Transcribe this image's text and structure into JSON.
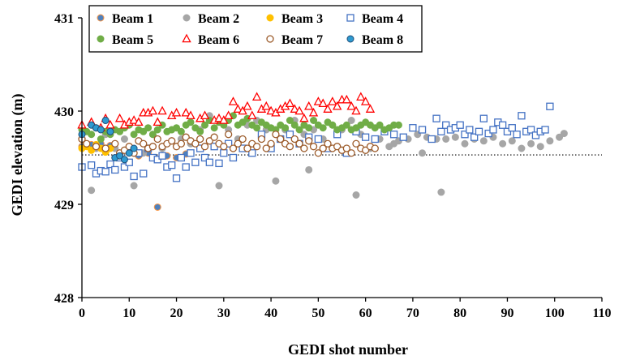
{
  "chart_data": {
    "type": "scatter",
    "title": "",
    "xlabel": "GEDI shot number",
    "ylabel": "GEDI elevation (m)",
    "xlim": [
      0,
      110
    ],
    "ylim": [
      428,
      431
    ],
    "xticks": [
      0,
      10,
      20,
      30,
      40,
      50,
      60,
      70,
      80,
      90,
      100,
      110
    ],
    "yticks": [
      428,
      429,
      430,
      431
    ],
    "xtick_labels": [
      "0",
      "10",
      "20",
      "30",
      "40",
      "50",
      "60",
      "70",
      "80",
      "90",
      "100",
      "110"
    ],
    "ytick_labels": [
      "428",
      "429",
      "430",
      "431"
    ],
    "grid": false,
    "legend": {
      "placement": "top-left"
    },
    "reference_line": {
      "y": 429.53,
      "style": "dotted"
    },
    "series": [
      {
        "name": "Beam 1",
        "marker": "circle",
        "fill": "#4F81BD",
        "stroke": "#F79646",
        "x": [
          0,
          2,
          4,
          6,
          8,
          12,
          14,
          16,
          18,
          20,
          22
        ],
        "y": [
          429.62,
          429.64,
          429.65,
          429.63,
          429.55,
          429.52,
          429.55,
          428.97,
          429.52,
          429.5,
          429.54
        ]
      },
      {
        "name": "Beam 2",
        "marker": "circle",
        "fill": "#A6A6A6",
        "stroke": "#A6A6A6",
        "x": [
          0,
          2,
          3,
          5,
          7,
          9,
          11,
          13,
          15,
          17,
          19,
          21,
          23,
          25,
          27,
          29,
          31,
          33,
          35,
          37,
          39,
          41,
          43,
          45,
          47,
          48,
          49,
          51,
          53,
          55,
          57,
          58,
          59,
          61,
          63,
          65,
          66,
          67,
          69,
          71,
          72,
          73,
          75,
          76,
          77,
          79,
          81,
          83,
          85,
          87,
          89,
          91,
          93,
          95,
          97,
          99,
          101,
          102
        ],
        "y": [
          429.7,
          429.15,
          429.6,
          429.75,
          429.6,
          429.7,
          429.2,
          429.55,
          429.75,
          429.6,
          429.8,
          429.7,
          429.65,
          429.8,
          429.95,
          429.2,
          429.8,
          429.7,
          429.85,
          429.9,
          429.8,
          429.25,
          429.8,
          429.9,
          429.75,
          429.37,
          429.8,
          429.7,
          429.85,
          429.8,
          429.9,
          429.1,
          429.75,
          429.6,
          429.7,
          429.62,
          429.65,
          429.68,
          429.7,
          429.75,
          429.55,
          429.72,
          429.7,
          429.13,
          429.7,
          429.72,
          429.65,
          429.7,
          429.68,
          429.72,
          429.65,
          429.68,
          429.6,
          429.65,
          429.62,
          429.68,
          429.72,
          429.76
        ]
      },
      {
        "name": "Beam 3",
        "marker": "circle",
        "fill": "#FFC000",
        "stroke": "#FFC000",
        "x": [
          0,
          1,
          2,
          3,
          4,
          5,
          6
        ],
        "y": [
          429.6,
          429.62,
          429.58,
          429.64,
          429.6,
          429.56,
          429.6
        ]
      },
      {
        "name": "Beam 4",
        "marker": "square-open",
        "fill": "none",
        "stroke": "#4472C4",
        "x": [
          0,
          2,
          3,
          4,
          5,
          6,
          7,
          8,
          9,
          10,
          11,
          12,
          13,
          14,
          15,
          16,
          17,
          18,
          19,
          20,
          21,
          22,
          23,
          24,
          25,
          26,
          27,
          28,
          29,
          30,
          31,
          32,
          34,
          36,
          38,
          40,
          42,
          44,
          46,
          48,
          50,
          52,
          54,
          56,
          58,
          60,
          62,
          64,
          66,
          68,
          70,
          72,
          74,
          75,
          76,
          77,
          78,
          79,
          80,
          81,
          82,
          83,
          84,
          85,
          86,
          87,
          88,
          89,
          90,
          91,
          92,
          93,
          94,
          95,
          96,
          97,
          98,
          99
        ],
        "y": [
          429.4,
          429.42,
          429.33,
          429.36,
          429.35,
          429.43,
          429.37,
          429.5,
          429.4,
          429.45,
          429.3,
          429.55,
          429.33,
          429.6,
          429.5,
          429.48,
          429.52,
          429.4,
          429.42,
          429.28,
          429.5,
          429.4,
          429.55,
          429.45,
          429.6,
          429.5,
          429.45,
          429.62,
          429.44,
          429.55,
          429.65,
          429.5,
          429.6,
          429.55,
          429.75,
          429.6,
          429.7,
          429.75,
          429.65,
          429.72,
          429.7,
          429.6,
          429.75,
          429.55,
          429.78,
          429.72,
          429.7,
          429.78,
          429.75,
          429.72,
          429.82,
          429.8,
          429.7,
          429.92,
          429.78,
          429.85,
          429.8,
          429.82,
          429.85,
          429.75,
          429.8,
          429.72,
          429.78,
          429.92,
          429.76,
          429.8,
          429.88,
          429.85,
          429.78,
          429.82,
          429.75,
          429.95,
          429.78,
          429.8,
          429.74,
          429.78,
          429.8,
          430.05
        ]
      },
      {
        "name": "Beam 5",
        "marker": "circle",
        "fill": "#70AD47",
        "stroke": "#70AD47",
        "x": [
          0,
          1,
          2,
          3,
          4,
          5,
          6,
          7,
          8,
          9,
          10,
          11,
          12,
          13,
          14,
          15,
          16,
          17,
          18,
          19,
          20,
          21,
          22,
          23,
          24,
          25,
          26,
          27,
          28,
          29,
          30,
          31,
          32,
          33,
          34,
          35,
          36,
          37,
          38,
          39,
          40,
          41,
          42,
          43,
          44,
          45,
          46,
          47,
          48,
          49,
          50,
          51,
          52,
          53,
          54,
          55,
          56,
          57,
          58,
          59,
          60,
          61,
          62,
          63,
          64,
          65,
          66,
          67
        ],
        "y": [
          429.8,
          429.78,
          429.75,
          429.82,
          429.7,
          429.78,
          429.75,
          429.8,
          429.78,
          429.82,
          429.85,
          429.75,
          429.8,
          429.78,
          429.82,
          429.75,
          429.8,
          429.85,
          429.78,
          429.8,
          429.82,
          429.78,
          429.85,
          429.88,
          429.82,
          429.78,
          429.85,
          429.9,
          429.82,
          429.88,
          429.85,
          429.9,
          429.95,
          429.85,
          429.88,
          429.92,
          429.85,
          429.82,
          429.88,
          429.85,
          429.82,
          429.8,
          429.85,
          429.82,
          429.9,
          429.85,
          429.8,
          429.85,
          429.82,
          429.9,
          429.85,
          429.82,
          429.88,
          429.85,
          429.8,
          429.82,
          429.85,
          429.8,
          429.82,
          429.85,
          429.88,
          429.85,
          429.82,
          429.85,
          429.8,
          429.82,
          429.85,
          429.85
        ]
      },
      {
        "name": "Beam 6",
        "marker": "triangle-open",
        "fill": "none",
        "stroke": "#FF0000",
        "x": [
          0,
          2,
          4,
          5,
          6,
          8,
          9,
          10,
          11,
          12,
          13,
          14,
          15,
          16,
          17,
          19,
          20,
          22,
          23,
          25,
          26,
          28,
          29,
          30,
          31,
          32,
          33,
          34,
          35,
          36,
          37,
          38,
          39,
          40,
          41,
          42,
          43,
          44,
          45,
          46,
          47,
          48,
          49,
          50,
          51,
          52,
          53,
          54,
          55,
          56,
          57,
          58,
          59,
          60,
          61
        ],
        "y": [
          429.85,
          429.88,
          429.82,
          429.92,
          429.85,
          429.92,
          429.85,
          429.88,
          429.9,
          429.88,
          429.98,
          429.98,
          430.0,
          429.88,
          430.0,
          429.95,
          429.98,
          429.98,
          429.95,
          429.92,
          429.95,
          429.9,
          429.92,
          429.9,
          429.95,
          430.1,
          430.02,
          430.0,
          430.05,
          429.95,
          430.15,
          430.02,
          430.05,
          430.0,
          429.98,
          430.02,
          430.05,
          430.08,
          430.02,
          430.0,
          429.92,
          430.05,
          429.98,
          430.1,
          430.08,
          430.02,
          430.1,
          430.05,
          430.12,
          430.12,
          430.05,
          430.0,
          430.15,
          430.1,
          430.02
        ]
      },
      {
        "name": "Beam 7",
        "marker": "circle-open",
        "fill": "none",
        "stroke": "#9C5B2A",
        "x": [
          0,
          1,
          3,
          5,
          7,
          8,
          9,
          10,
          11,
          12,
          13,
          14,
          15,
          16,
          17,
          18,
          19,
          20,
          21,
          22,
          23,
          24,
          25,
          26,
          27,
          28,
          29,
          30,
          31,
          32,
          33,
          34,
          35,
          36,
          37,
          38,
          39,
          40,
          41,
          42,
          43,
          44,
          45,
          46,
          47,
          48,
          49,
          50,
          51,
          52,
          53,
          54,
          55,
          56,
          57,
          58,
          59,
          60,
          61,
          62
        ],
        "y": [
          429.7,
          429.65,
          429.62,
          429.6,
          429.65,
          429.55,
          429.58,
          429.62,
          429.55,
          429.68,
          429.65,
          429.6,
          429.62,
          429.7,
          429.62,
          429.65,
          429.68,
          429.62,
          429.65,
          429.72,
          429.68,
          429.65,
          429.7,
          429.62,
          429.68,
          429.72,
          429.65,
          429.62,
          429.75,
          429.6,
          429.65,
          429.7,
          429.6,
          429.65,
          429.62,
          429.7,
          429.6,
          429.65,
          429.75,
          429.7,
          429.65,
          429.62,
          429.7,
          429.65,
          429.6,
          429.68,
          429.62,
          429.55,
          429.6,
          429.65,
          429.6,
          429.62,
          429.58,
          429.6,
          429.55,
          429.65,
          429.6,
          429.58,
          429.62,
          429.6
        ]
      },
      {
        "name": "Beam 8",
        "marker": "circle",
        "fill": "#2E9AD0",
        "stroke": "#1F4E79",
        "x": [
          0,
          2,
          3,
          4,
          5,
          6,
          7,
          8,
          9,
          10,
          11
        ],
        "y": [
          429.75,
          429.85,
          429.82,
          429.8,
          429.9,
          429.78,
          429.5,
          429.52,
          429.48,
          429.55,
          429.6
        ]
      }
    ]
  }
}
